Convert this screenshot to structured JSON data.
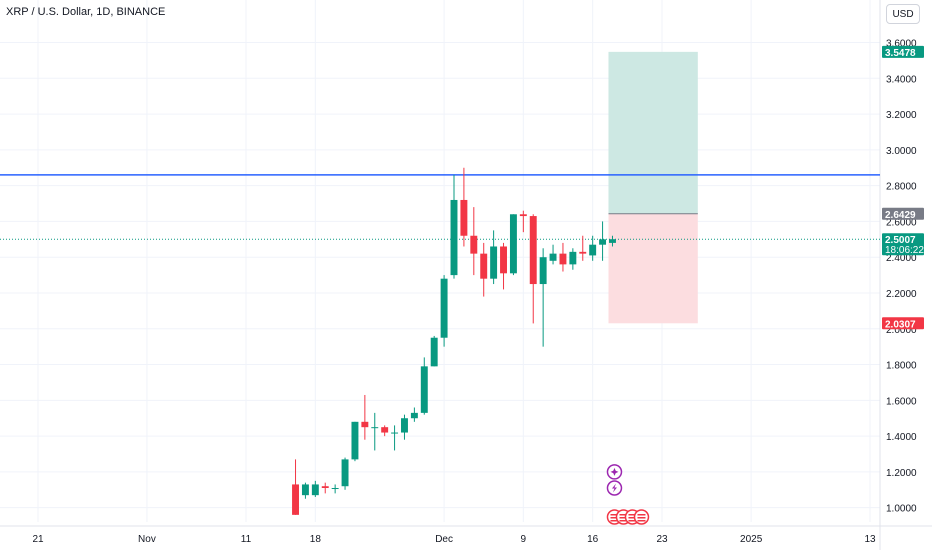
{
  "header": {
    "title": "XRP / U.S. Dollar, 1D, BINANCE",
    "currency_button": "USD"
  },
  "colors": {
    "up": "#089981",
    "down": "#f23645",
    "resistance_line": "#2962ff",
    "last_price_line": "#089981",
    "profit_zone": "#cde8e3",
    "loss_zone": "#fcdde0",
    "entry_label": "#787b86",
    "grid": "#f0f3fa",
    "axis_text": "#131722",
    "event_marker": "#9c27b0",
    "flag_marker": "#f23645"
  },
  "chart_data": {
    "type": "candlestick",
    "symbol": "XRP / U.S. Dollar",
    "interval": "1D",
    "exchange": "BINANCE",
    "currency": "USD",
    "y_axis": {
      "ylim": [
        0.92,
        3.67
      ],
      "tick_labels": [
        "1.0000",
        "1.2000",
        "1.4000",
        "1.6000",
        "1.8000",
        "2.0000",
        "2.2000",
        "2.4000",
        "2.6000",
        "2.8000",
        "3.0000",
        "3.2000",
        "3.4000",
        "3.6000"
      ],
      "tick_values": [
        1.0,
        1.2,
        1.4,
        1.6,
        1.8,
        2.0,
        2.2,
        2.4,
        2.6,
        2.8,
        3.0,
        3.2,
        3.4,
        3.6
      ]
    },
    "x_axis": {
      "start_date": "2024-10-15",
      "end_date": "2025-01-13",
      "ticks": [
        {
          "date": "2024-10-21",
          "label": "21"
        },
        {
          "date": "2024-11-01",
          "label": "Nov"
        },
        {
          "date": "2024-11-11",
          "label": "11"
        },
        {
          "date": "2024-11-18",
          "label": "18"
        },
        {
          "date": "2024-12-01",
          "label": "Dec"
        },
        {
          "date": "2024-12-09",
          "label": "9"
        },
        {
          "date": "2024-12-16",
          "label": "16"
        },
        {
          "date": "2024-12-23",
          "label": "23"
        },
        {
          "date": "2025-01-01",
          "label": "2025"
        },
        {
          "date": "2025-01-13",
          "label": "13"
        }
      ]
    },
    "candles": [
      {
        "date": "2024-11-16",
        "open": 1.13,
        "high": 1.27,
        "low": 0.96,
        "close": 0.96
      },
      {
        "date": "2024-11-17",
        "open": 1.07,
        "high": 1.14,
        "low": 1.05,
        "close": 1.13
      },
      {
        "date": "2024-11-18",
        "open": 1.07,
        "high": 1.15,
        "low": 1.06,
        "close": 1.13
      },
      {
        "date": "2024-11-19",
        "open": 1.12,
        "high": 1.14,
        "low": 1.08,
        "close": 1.11
      },
      {
        "date": "2024-11-20",
        "open": 1.11,
        "high": 1.13,
        "low": 1.08,
        "close": 1.11
      },
      {
        "date": "2024-11-21",
        "open": 1.12,
        "high": 1.28,
        "low": 1.1,
        "close": 1.27
      },
      {
        "date": "2024-11-22",
        "open": 1.27,
        "high": 1.48,
        "low": 1.26,
        "close": 1.48
      },
      {
        "date": "2024-11-23",
        "open": 1.48,
        "high": 1.63,
        "low": 1.38,
        "close": 1.45
      },
      {
        "date": "2024-11-24",
        "open": 1.45,
        "high": 1.53,
        "low": 1.32,
        "close": 1.45
      },
      {
        "date": "2024-11-25",
        "open": 1.45,
        "high": 1.46,
        "low": 1.4,
        "close": 1.42
      },
      {
        "date": "2024-11-26",
        "open": 1.42,
        "high": 1.46,
        "low": 1.32,
        "close": 1.42
      },
      {
        "date": "2024-11-27",
        "open": 1.42,
        "high": 1.52,
        "low": 1.38,
        "close": 1.5
      },
      {
        "date": "2024-11-28",
        "open": 1.5,
        "high": 1.56,
        "low": 1.48,
        "close": 1.53
      },
      {
        "date": "2024-11-29",
        "open": 1.53,
        "high": 1.84,
        "low": 1.52,
        "close": 1.79
      },
      {
        "date": "2024-11-30",
        "open": 1.79,
        "high": 1.96,
        "low": 1.79,
        "close": 1.95
      },
      {
        "date": "2024-12-01",
        "open": 1.95,
        "high": 2.3,
        "low": 1.9,
        "close": 2.28
      },
      {
        "date": "2024-12-02",
        "open": 2.3,
        "high": 2.86,
        "low": 2.28,
        "close": 2.72
      },
      {
        "date": "2024-12-03",
        "open": 2.72,
        "high": 2.9,
        "low": 2.46,
        "close": 2.52
      },
      {
        "date": "2024-12-04",
        "open": 2.52,
        "high": 2.68,
        "low": 2.3,
        "close": 2.42
      },
      {
        "date": "2024-12-05",
        "open": 2.42,
        "high": 2.48,
        "low": 2.18,
        "close": 2.28
      },
      {
        "date": "2024-12-06",
        "open": 2.28,
        "high": 2.55,
        "low": 2.25,
        "close": 2.46
      },
      {
        "date": "2024-12-07",
        "open": 2.46,
        "high": 2.48,
        "low": 2.22,
        "close": 2.31
      },
      {
        "date": "2024-12-08",
        "open": 2.31,
        "high": 2.64,
        "low": 2.3,
        "close": 2.64
      },
      {
        "date": "2024-12-09",
        "open": 2.64,
        "high": 2.66,
        "low": 2.54,
        "close": 2.63
      },
      {
        "date": "2024-12-10",
        "open": 2.63,
        "high": 2.64,
        "low": 2.03,
        "close": 2.25
      },
      {
        "date": "2024-12-11",
        "open": 2.25,
        "high": 2.45,
        "low": 1.9,
        "close": 2.4
      },
      {
        "date": "2024-12-12",
        "open": 2.38,
        "high": 2.47,
        "low": 2.36,
        "close": 2.42
      },
      {
        "date": "2024-12-13",
        "open": 2.42,
        "high": 2.48,
        "low": 2.32,
        "close": 2.36
      },
      {
        "date": "2024-12-14",
        "open": 2.36,
        "high": 2.45,
        "low": 2.33,
        "close": 2.43
      },
      {
        "date": "2024-12-15",
        "open": 2.43,
        "high": 2.52,
        "low": 2.38,
        "close": 2.42
      },
      {
        "date": "2024-12-16",
        "open": 2.41,
        "high": 2.52,
        "low": 2.38,
        "close": 2.47
      },
      {
        "date": "2024-12-17",
        "open": 2.47,
        "high": 2.6,
        "low": 2.38,
        "close": 2.5
      },
      {
        "date": "2024-12-18",
        "open": 2.48,
        "high": 2.52,
        "low": 2.46,
        "close": 2.5007
      }
    ],
    "resistance_line": {
      "value": 2.86
    },
    "last_price": {
      "value": 2.5007,
      "label": "2.5007",
      "countdown": "18:06:22"
    },
    "position": {
      "start_date": "2024-12-18",
      "end_date": "2024-12-25",
      "entry": 2.6429,
      "entry_label": "2.6429",
      "target": 3.5478,
      "target_label": "3.5478",
      "stop": 2.0307,
      "stop_label": "2.0307"
    },
    "event_markers": [
      {
        "date": "2024-12-18",
        "value": 1.2,
        "icon": "plus"
      },
      {
        "date": "2024-12-18",
        "value": 1.11,
        "icon": "lightning"
      }
    ],
    "flag_markers": [
      {
        "date": "2024-12-18"
      },
      {
        "date": "2024-12-19"
      },
      {
        "date": "2024-12-20"
      },
      {
        "date": "2024-12-21"
      }
    ]
  }
}
